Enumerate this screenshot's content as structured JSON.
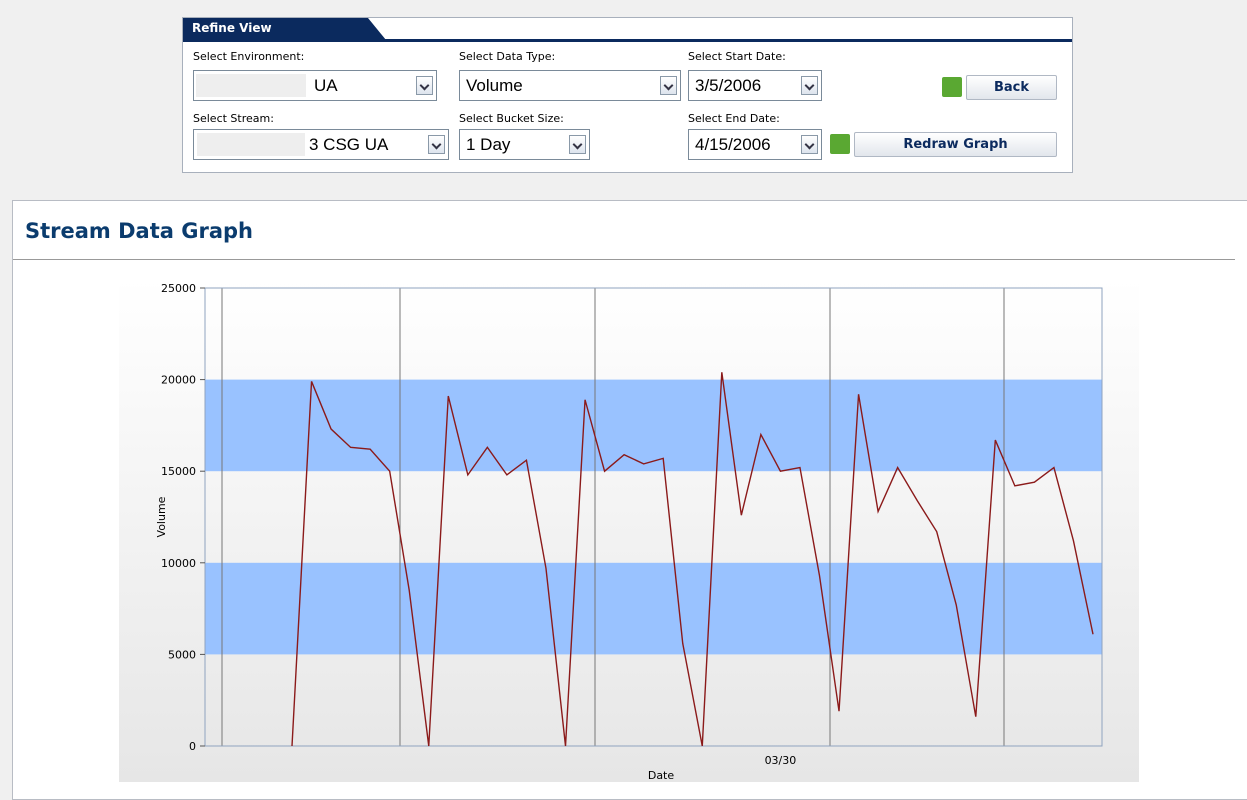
{
  "refine": {
    "tab": "Refine View",
    "environment": {
      "label": "Select Environment:",
      "value": "UA"
    },
    "data_type": {
      "label": "Select Data Type:",
      "value": "Volume"
    },
    "start_date": {
      "label": "Select Start Date:",
      "value": "3/5/2006"
    },
    "stream": {
      "label": "Select Stream:",
      "value": "3 CSG UA"
    },
    "bucket_size": {
      "label": "Select Bucket Size:",
      "value": "1 Day"
    },
    "end_date": {
      "label": "Select End Date:",
      "value": "4/15/2006"
    },
    "back_button": "Back",
    "redraw_button": "Redraw Graph"
  },
  "panel_title": "Stream Data Graph",
  "chart_data": {
    "type": "line",
    "x_label": "Date",
    "y_label": "Volume",
    "categories": [
      null,
      null,
      null,
      null,
      null,
      null,
      null,
      null,
      null,
      null,
      null,
      null,
      null,
      null,
      null,
      null,
      null,
      null,
      null,
      null,
      null,
      null,
      null,
      null,
      null,
      "03/30",
      null,
      null,
      null,
      null,
      null,
      null,
      null,
      null,
      null,
      null,
      null,
      null,
      null,
      null,
      null,
      null
    ],
    "series": [
      {
        "name": "Volume",
        "color": "#8b1a1a",
        "values": [
          0,
          19900,
          17300,
          16300,
          16200,
          15000,
          8500,
          0,
          19100,
          14800,
          16300,
          14800,
          15600,
          9700,
          0,
          18900,
          15000,
          15900,
          15400,
          15700,
          5600,
          0,
          20400,
          12600,
          17000,
          15000,
          15200,
          9300,
          1900,
          19200,
          12800,
          15200,
          13400,
          11700,
          7700,
          1600,
          16700,
          14200,
          14400,
          15200,
          11200,
          6100
        ]
      }
    ],
    "ylim": [
      0,
      25000
    ],
    "yticks": [
      0,
      5000,
      10000,
      15000,
      20000,
      25000
    ],
    "alternate_bands": true,
    "band_color": "#99c2ff"
  }
}
